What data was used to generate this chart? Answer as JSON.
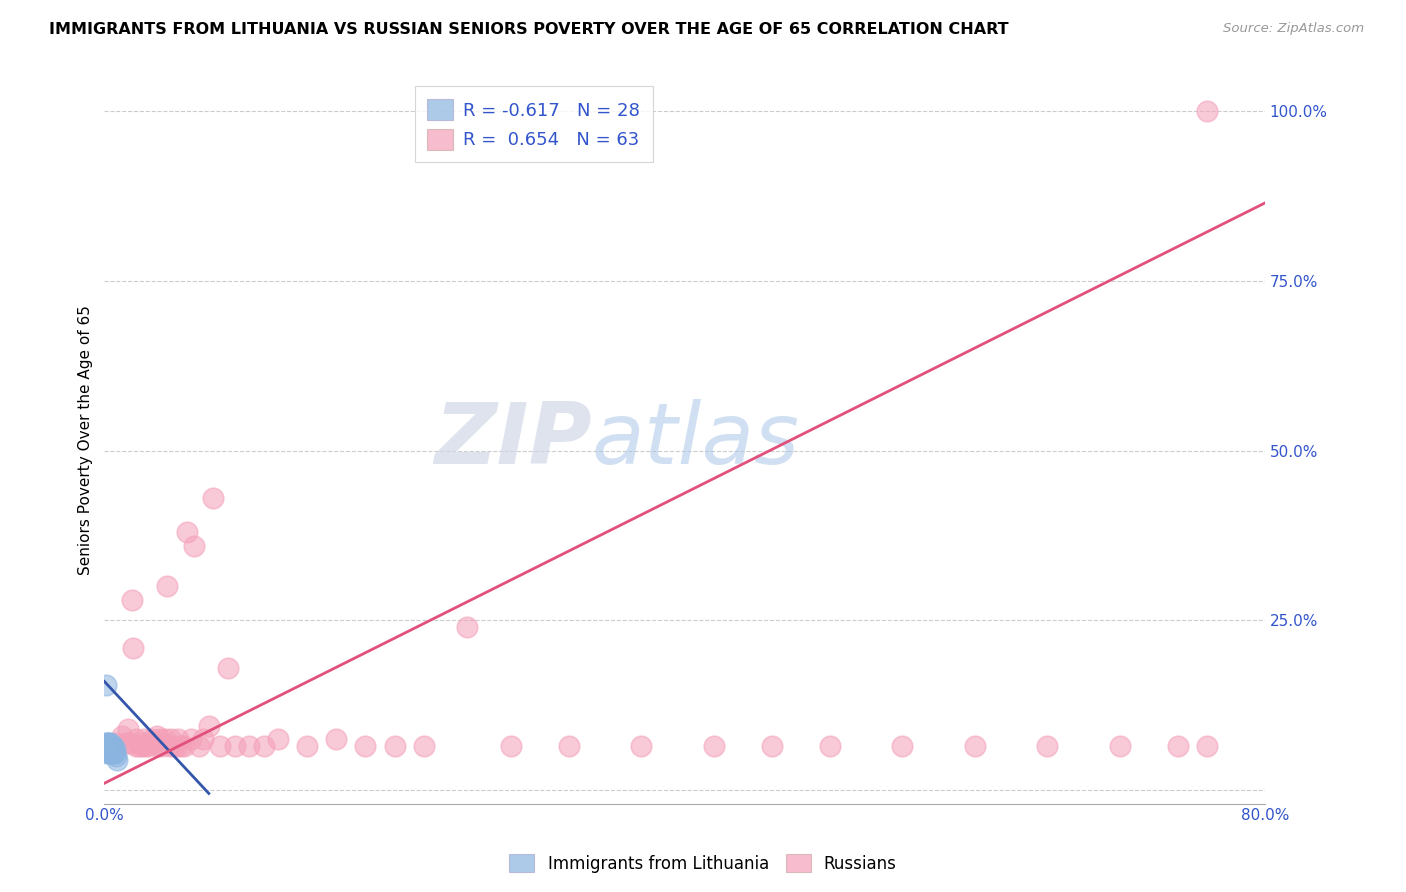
{
  "title": "IMMIGRANTS FROM LITHUANIA VS RUSSIAN SENIORS POVERTY OVER THE AGE OF 65 CORRELATION CHART",
  "source": "Source: ZipAtlas.com",
  "ylabel": "Seniors Poverty Over the Age of 65",
  "xlabel": "",
  "xlim": [
    0.0,
    0.8
  ],
  "ylim": [
    -0.02,
    1.05
  ],
  "yticks": [
    0.0,
    0.25,
    0.5,
    0.75,
    1.0
  ],
  "ytick_labels": [
    "",
    "25.0%",
    "50.0%",
    "75.0%",
    "100.0%"
  ],
  "xticks": [
    0.0,
    0.1,
    0.2,
    0.3,
    0.4,
    0.5,
    0.6,
    0.7,
    0.8
  ],
  "xtick_labels": [
    "0.0%",
    "",
    "",
    "",
    "",
    "",
    "",
    "",
    "80.0%"
  ],
  "color_blue": "#8BB4E0",
  "color_pink": "#F4A0B8",
  "color_blue_line": "#3355AA",
  "color_pink_line": "#E0507A",
  "watermark_zip": "ZIP",
  "watermark_atlas": "atlas",
  "background_color": "#ffffff",
  "blue_scatter_x": [
    0.001,
    0.001,
    0.001,
    0.002,
    0.002,
    0.002,
    0.002,
    0.003,
    0.003,
    0.003,
    0.003,
    0.003,
    0.004,
    0.004,
    0.004,
    0.004,
    0.004,
    0.005,
    0.005,
    0.005,
    0.005,
    0.006,
    0.006,
    0.006,
    0.007,
    0.007,
    0.008,
    0.009
  ],
  "blue_scatter_y": [
    0.155,
    0.07,
    0.06,
    0.07,
    0.06,
    0.055,
    0.065,
    0.07,
    0.065,
    0.06,
    0.055,
    0.065,
    0.065,
    0.06,
    0.055,
    0.07,
    0.065,
    0.06,
    0.055,
    0.065,
    0.06,
    0.06,
    0.055,
    0.065,
    0.055,
    0.06,
    0.05,
    0.045
  ],
  "pink_scatter_x": [
    0.008,
    0.012,
    0.015,
    0.016,
    0.018,
    0.019,
    0.02,
    0.022,
    0.022,
    0.024,
    0.025,
    0.026,
    0.027,
    0.028,
    0.03,
    0.031,
    0.033,
    0.034,
    0.036,
    0.037,
    0.038,
    0.04,
    0.042,
    0.043,
    0.045,
    0.046,
    0.048,
    0.05,
    0.051,
    0.053,
    0.055,
    0.057,
    0.06,
    0.062,
    0.065,
    0.068,
    0.072,
    0.075,
    0.08,
    0.085,
    0.09,
    0.1,
    0.11,
    0.12,
    0.14,
    0.16,
    0.18,
    0.2,
    0.22,
    0.25,
    0.28,
    0.32,
    0.37,
    0.42,
    0.46,
    0.5,
    0.55,
    0.6,
    0.65,
    0.7,
    0.74,
    0.76,
    0.76
  ],
  "pink_scatter_y": [
    0.07,
    0.08,
    0.07,
    0.09,
    0.07,
    0.28,
    0.21,
    0.065,
    0.075,
    0.065,
    0.07,
    0.065,
    0.075,
    0.065,
    0.065,
    0.07,
    0.075,
    0.07,
    0.08,
    0.065,
    0.075,
    0.065,
    0.075,
    0.3,
    0.065,
    0.075,
    0.065,
    0.065,
    0.075,
    0.065,
    0.065,
    0.38,
    0.075,
    0.36,
    0.065,
    0.075,
    0.095,
    0.43,
    0.065,
    0.18,
    0.065,
    0.065,
    0.065,
    0.075,
    0.065,
    0.075,
    0.065,
    0.065,
    0.065,
    0.24,
    0.065,
    0.065,
    0.065,
    0.065,
    0.065,
    0.065,
    0.065,
    0.065,
    0.065,
    0.065,
    0.065,
    0.065,
    1.0
  ],
  "blue_line_x": [
    0.0,
    0.072
  ],
  "blue_line_y": [
    0.16,
    -0.005
  ],
  "pink_line_x": [
    0.0,
    0.8
  ],
  "pink_line_y": [
    0.01,
    0.865
  ]
}
